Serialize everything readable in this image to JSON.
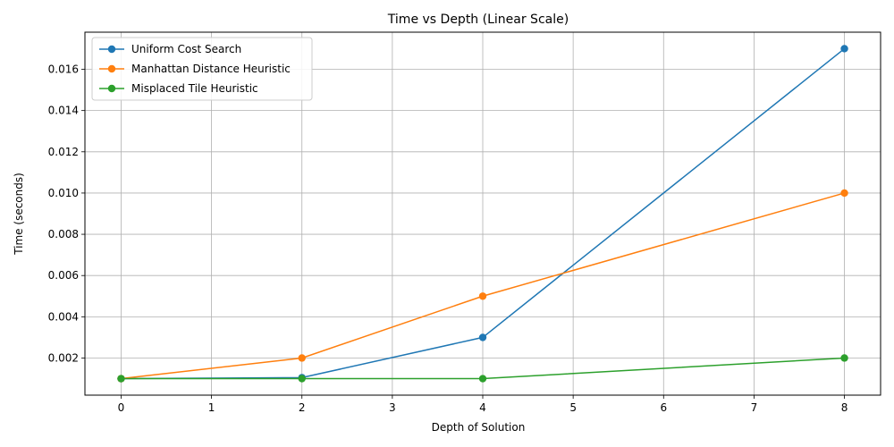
{
  "chart_data": {
    "type": "line",
    "title": "Time vs Depth (Linear Scale)",
    "xlabel": "Depth of Solution",
    "ylabel": "Time (seconds)",
    "xlim": [
      -0.4,
      8.4
    ],
    "ylim": [
      0.0002,
      0.0178
    ],
    "xticks": [
      0,
      1,
      2,
      3,
      4,
      5,
      6,
      7,
      8
    ],
    "yticks": [
      0.002,
      0.004,
      0.006,
      0.008,
      0.01,
      0.012,
      0.014,
      0.016
    ],
    "ytick_labels": [
      "0.002",
      "0.004",
      "0.006",
      "0.008",
      "0.010",
      "0.012",
      "0.014",
      "0.016"
    ],
    "grid": true,
    "legend_position": "upper-left",
    "x": [
      0,
      2,
      4,
      8
    ],
    "series": [
      {
        "name": "Uniform Cost Search",
        "color": "#1f77b4",
        "values": [
          0.001,
          0.00105,
          0.003,
          0.017
        ]
      },
      {
        "name": "Manhattan Distance Heuristic",
        "color": "#ff7f0e",
        "values": [
          0.001,
          0.002,
          0.005,
          0.01
        ]
      },
      {
        "name": "Misplaced Tile Heuristic",
        "color": "#2ca02c",
        "values": [
          0.001,
          0.001,
          0.001,
          0.002
        ]
      }
    ]
  }
}
